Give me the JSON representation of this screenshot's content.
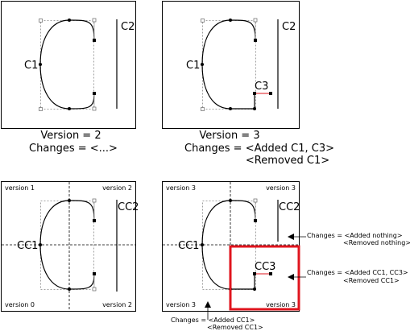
{
  "panels": {
    "p1": {
      "curve_label": "C1",
      "bar_label": "C2",
      "caption_version": "Version = 2",
      "caption_changes": "Changes = <...>"
    },
    "p2": {
      "curve_label": "C1",
      "bar_label": "C2",
      "small_label": "C3",
      "caption_version": "Version = 3",
      "caption_changes": "Changes = <Added C1, C3>",
      "caption_changes_2": "<Removed C1>"
    },
    "p3": {
      "curve_label": "CC1",
      "bar_label": "CC2",
      "corner_tl": "version 1",
      "corner_tr": "version 2",
      "corner_bl": "version 0",
      "corner_br": "version 2"
    },
    "p4": {
      "curve_label": "CC1",
      "bar_label": "CC2",
      "small_label": "CC3",
      "corner_tl": "version 3",
      "corner_tr": "version 3",
      "corner_bl": "version 3",
      "corner_br": "version 3",
      "highlight_color": "#e0141e"
    }
  },
  "annotations": {
    "right_top_1": "Changes = <Added nothing>",
    "right_top_2": "<Removed nothing>",
    "right_mid_1": "Changes = <Added CC1, CC3>",
    "right_mid_2": "<Removed CC1>",
    "bottom_1": "Changes = <Added CC1>",
    "bottom_2": "<Removed CC1>"
  }
}
